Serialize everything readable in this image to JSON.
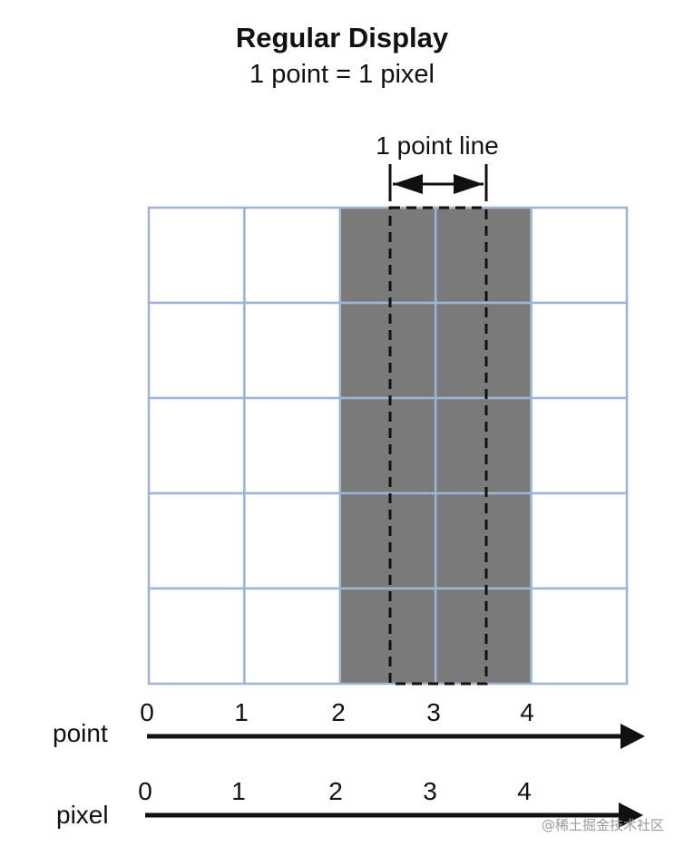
{
  "title": "Regular Display",
  "subtitle": "1 point = 1 pixel",
  "line_label": "1 point line",
  "grid": {
    "columns": 5,
    "rows": 5,
    "filled_columns": [
      2,
      3
    ]
  },
  "axes": [
    {
      "name": "point",
      "ticks": [
        "0",
        "1",
        "2",
        "3",
        "4"
      ]
    },
    {
      "name": "pixel",
      "ticks": [
        "0",
        "1",
        "2",
        "3",
        "4"
      ]
    }
  ],
  "watermark": "@稀土掘金技术社区",
  "colors": {
    "grid_line": "#9fb4d4",
    "fill": "#7a7a7a",
    "text": "#111111"
  }
}
